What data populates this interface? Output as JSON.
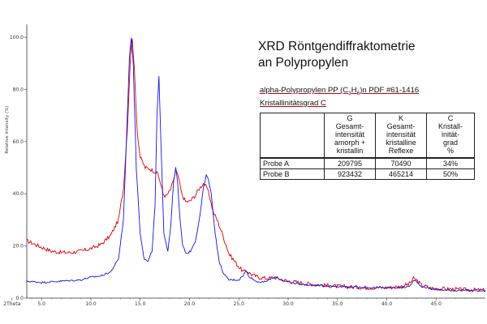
{
  "chart_data": {
    "type": "line",
    "title": "XRD Röntgendiffraktometrie",
    "subtitle": "an Polypropylen",
    "xlabel": "2Theta",
    "ylabel": "Relative Intensity (%)",
    "xlim": [
      3.5,
      50
    ],
    "ylim": [
      0,
      105
    ],
    "x_ticks": [
      "5.0",
      "10.0",
      "15.0",
      "20.0",
      "25.0",
      "30.0",
      "35.0",
      "40.0",
      "45.0",
      "2Theta"
    ],
    "y_ticks": [
      "0.0",
      "20.0",
      "40.0",
      "60.0",
      "80.0",
      "100.0"
    ],
    "grid": false,
    "series": [
      {
        "color": "#e00000",
        "x": [
          3.5,
          5,
          6,
          7,
          8,
          9,
          10,
          11,
          12,
          12.8,
          13.3,
          13.7,
          14.0,
          14.2,
          14.4,
          14.7,
          15.0,
          15.5,
          16.0,
          16.5,
          16.8,
          17.0,
          17.3,
          17.6,
          18.0,
          18.3,
          18.6,
          18.9,
          19.2,
          19.6,
          20.0,
          20.5,
          21.0,
          21.4,
          21.8,
          22.1,
          22.4,
          22.8,
          23.3,
          24.0,
          25.0,
          25.5,
          25.8,
          26.3,
          27.0,
          28.0,
          28.5,
          29.0,
          30.0,
          32.0,
          35.0,
          38.0,
          40.0,
          41.5,
          42.3,
          42.7,
          43.0,
          43.5,
          44.5,
          46.0,
          48.0,
          50.0
        ],
        "y": [
          22,
          19.5,
          18,
          17.5,
          17.5,
          18,
          19,
          20.5,
          24,
          30,
          42,
          65,
          92,
          100,
          88,
          64,
          54,
          50,
          49.5,
          48.5,
          47.5,
          45,
          40,
          39,
          41,
          44,
          49,
          46,
          40,
          37,
          37,
          39,
          42,
          44,
          42,
          38,
          33,
          30,
          25,
          17,
          12,
          10,
          10.5,
          9,
          8,
          7.5,
          8,
          7.5,
          6.5,
          5.5,
          4.5,
          4,
          4,
          4.5,
          5.5,
          7.5,
          7,
          5,
          3.8,
          3.5,
          3.2,
          3
        ]
      },
      {
        "color": "#1414e6",
        "x": [
          3.5,
          5,
          7,
          9,
          10,
          11,
          12,
          12.8,
          13.3,
          13.6,
          13.9,
          14.1,
          14.3,
          14.6,
          15.0,
          15.4,
          15.8,
          16.2,
          16.5,
          16.7,
          16.9,
          17.1,
          17.4,
          17.8,
          18.1,
          18.4,
          18.6,
          18.8,
          19.0,
          19.3,
          19.7,
          20.1,
          20.6,
          21.0,
          21.4,
          21.7,
          21.9,
          22.2,
          22.6,
          23.0,
          23.5,
          24.0,
          25.0,
          25.5,
          25.7,
          26.0,
          26.7,
          27.5,
          28.3,
          28.8,
          29.3,
          30.0,
          32.0,
          35.0,
          38.0,
          40.0,
          41.5,
          42.3,
          42.7,
          43.0,
          43.5,
          44.5,
          46.0,
          48.0,
          50.0
        ],
        "y": [
          6.5,
          6,
          6.5,
          7,
          8,
          8.5,
          10,
          15,
          30,
          60,
          92,
          100,
          90,
          50,
          25,
          15,
          14,
          18,
          35,
          70,
          85,
          60,
          25,
          18,
          28,
          45,
          50,
          44,
          32,
          20,
          17,
          18,
          22,
          30,
          42,
          47,
          46,
          40,
          25,
          14,
          9,
          7,
          7,
          9,
          10.5,
          8.5,
          6.5,
          6,
          7.5,
          8,
          7,
          6,
          5,
          4.5,
          4,
          4,
          4,
          4.5,
          6.5,
          6.5,
          4.5,
          3.5,
          3,
          3,
          2.8
        ]
      }
    ]
  },
  "header": {
    "title_line1": "XRD Röntgendiffraktometrie",
    "title_line2": "an Polypropylen",
    "sub_prefix": "alpha-Polypropylen PP (C",
    "sub_c": "3",
    "sub_mid": "H",
    "sub_h": "6",
    "sub_suffix": ")n PDF #61-1416",
    "sub_line2": "Kristallinitätsgrad C"
  },
  "table": {
    "headers": [
      {
        "letter": "G",
        "lines": [
          "Gesamt-",
          "intensität",
          "amorph +",
          "kristallin"
        ]
      },
      {
        "letter": "K",
        "lines": [
          "Gesamt-",
          "intensität",
          "kristalline",
          "Reflexe"
        ]
      },
      {
        "letter": "C",
        "lines": [
          "Kristall-",
          "inität-",
          "grad",
          "%"
        ]
      }
    ],
    "rows": [
      {
        "label": "Probe A",
        "g": "209795",
        "k": "70490",
        "c": "34%"
      },
      {
        "label": "Probe B",
        "g": "923432",
        "k": "465214",
        "c": "50%"
      }
    ]
  }
}
